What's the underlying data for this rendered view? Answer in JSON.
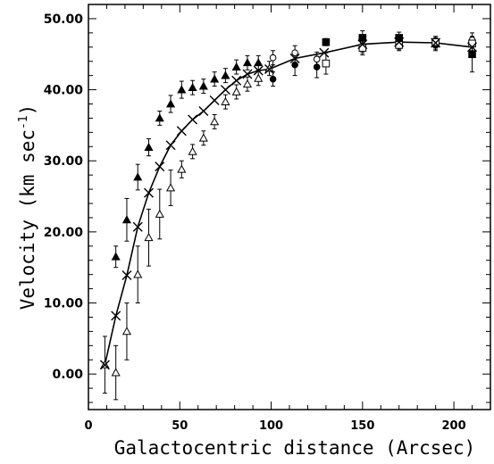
{
  "chart_data": {
    "type": "scatter",
    "title": "",
    "xlabel": "Galactocentric distance (Arcsec)",
    "ylabel": "Velocity (km sec",
    "ylabel_superscript": "-1",
    "ylabel_close": ")",
    "xlim": [
      0,
      220
    ],
    "ylim": [
      -5,
      52
    ],
    "x_ticks": [
      0,
      50,
      100,
      150,
      200
    ],
    "x_tick_labels": [
      "0",
      "50",
      "100",
      "150",
      "200"
    ],
    "y_ticks": [
      0,
      10,
      20,
      30,
      40,
      50
    ],
    "y_tick_labels": [
      "0.00",
      "10.00",
      "20.00",
      "30.00",
      "40.00",
      "50.00"
    ],
    "grid": false,
    "series": [
      {
        "marker": "filled-triangle",
        "points": [
          {
            "x": 15,
            "y": 16.5,
            "err": 1.5
          },
          {
            "x": 21,
            "y": 21.7,
            "err": 3.0
          },
          {
            "x": 27,
            "y": 27.7,
            "err": 1.8
          },
          {
            "x": 33,
            "y": 31.9,
            "err": 1.2
          },
          {
            "x": 39,
            "y": 36.0,
            "err": 1.0
          },
          {
            "x": 45,
            "y": 38.0,
            "err": 1.2
          },
          {
            "x": 51,
            "y": 40.0,
            "err": 1.2
          },
          {
            "x": 57,
            "y": 40.3,
            "err": 1.0
          },
          {
            "x": 63,
            "y": 40.5,
            "err": 1.0
          },
          {
            "x": 69,
            "y": 41.5,
            "err": 1.0
          },
          {
            "x": 75,
            "y": 42.0,
            "err": 1.0
          },
          {
            "x": 81,
            "y": 43.2,
            "err": 1.0
          },
          {
            "x": 87,
            "y": 43.8,
            "err": 1.0
          },
          {
            "x": 93,
            "y": 43.8,
            "err": 1.0
          }
        ]
      },
      {
        "marker": "open-triangle",
        "points": [
          {
            "x": 9,
            "y": 1.3,
            "err": 4.0
          },
          {
            "x": 15,
            "y": 0.2,
            "err": 3.8
          },
          {
            "x": 21,
            "y": 6.0,
            "err": 4.0
          },
          {
            "x": 27,
            "y": 14.0,
            "err": 4.0
          },
          {
            "x": 33,
            "y": 19.2,
            "err": 4.0
          },
          {
            "x": 39,
            "y": 22.5,
            "err": 3.5
          },
          {
            "x": 45,
            "y": 26.2,
            "err": 2.5
          },
          {
            "x": 51,
            "y": 28.8,
            "err": 1.2
          },
          {
            "x": 57,
            "y": 31.3,
            "err": 1.0
          },
          {
            "x": 63,
            "y": 33.2,
            "err": 1.0
          },
          {
            "x": 69,
            "y": 35.5,
            "err": 1.0
          },
          {
            "x": 75,
            "y": 38.3,
            "err": 1.0
          },
          {
            "x": 81,
            "y": 39.7,
            "err": 1.0
          },
          {
            "x": 87,
            "y": 40.8,
            "err": 1.0
          },
          {
            "x": 93,
            "y": 41.6,
            "err": 1.0
          },
          {
            "x": 99,
            "y": 43.0,
            "err": 1.0
          }
        ]
      },
      {
        "marker": "filled-circle",
        "points": [
          {
            "x": 101,
            "y": 41.5,
            "err": 1.0
          },
          {
            "x": 113,
            "y": 43.5,
            "err": 1.5
          },
          {
            "x": 125,
            "y": 43.2,
            "err": 1.5
          }
        ]
      },
      {
        "marker": "open-circle",
        "points": [
          {
            "x": 101,
            "y": 44.5,
            "err": 1.0
          },
          {
            "x": 113,
            "y": 45.2,
            "err": 1.0
          },
          {
            "x": 125,
            "y": 44.3,
            "err": 1.0
          },
          {
            "x": 150,
            "y": 46.2,
            "err": 1.0
          },
          {
            "x": 170,
            "y": 46.5,
            "err": 0.8
          },
          {
            "x": 190,
            "y": 46.5,
            "err": 0.8
          },
          {
            "x": 210,
            "y": 47.0,
            "err": 1.0
          }
        ]
      },
      {
        "marker": "filled-square",
        "points": [
          {
            "x": 130,
            "y": 46.7,
            "err": 0.5
          },
          {
            "x": 150,
            "y": 47.3,
            "err": 1.0
          },
          {
            "x": 170,
            "y": 47.3,
            "err": 0.8
          },
          {
            "x": 190,
            "y": 46.5,
            "err": 1.0
          },
          {
            "x": 210,
            "y": 45.0,
            "err": 2.5
          }
        ]
      },
      {
        "marker": "open-square",
        "points": [
          {
            "x": 130,
            "y": 43.7,
            "err": 1.5
          },
          {
            "x": 150,
            "y": 45.9,
            "err": 1.0
          },
          {
            "x": 170,
            "y": 46.3,
            "err": 0.8
          },
          {
            "x": 190,
            "y": 46.7,
            "err": 0.8
          },
          {
            "x": 210,
            "y": 46.5,
            "err": 1.0
          }
        ]
      },
      {
        "marker": "cross-line",
        "points": [
          {
            "x": 9,
            "y": 1.3
          },
          {
            "x": 15,
            "y": 8.2
          },
          {
            "x": 21,
            "y": 13.9
          },
          {
            "x": 27,
            "y": 20.7
          },
          {
            "x": 33,
            "y": 25.5
          },
          {
            "x": 39,
            "y": 29.2
          },
          {
            "x": 45,
            "y": 32.2
          },
          {
            "x": 51,
            "y": 34.2
          },
          {
            "x": 57,
            "y": 35.8
          },
          {
            "x": 63,
            "y": 37.0
          },
          {
            "x": 69,
            "y": 38.5
          },
          {
            "x": 75,
            "y": 40.0
          },
          {
            "x": 81,
            "y": 41.3
          },
          {
            "x": 87,
            "y": 42.2
          },
          {
            "x": 93,
            "y": 42.7
          },
          {
            "x": 99,
            "y": 42.9
          },
          {
            "x": 113,
            "y": 44.4
          },
          {
            "x": 129,
            "y": 45.2
          },
          {
            "x": 150,
            "y": 46.4
          },
          {
            "x": 170,
            "y": 46.7
          },
          {
            "x": 190,
            "y": 46.6
          },
          {
            "x": 210,
            "y": 46.0
          }
        ]
      }
    ]
  }
}
